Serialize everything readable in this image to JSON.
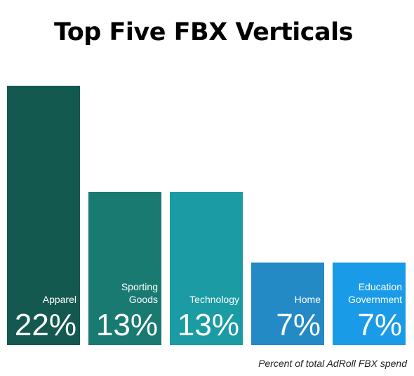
{
  "chart_data": {
    "type": "bar",
    "title": "Top Five FBX Verticals",
    "categories": [
      [
        "Apparel"
      ],
      [
        "Sporting",
        "Goods"
      ],
      [
        "Technology"
      ],
      [
        "Home"
      ],
      [
        "Education",
        "Government"
      ]
    ],
    "values": [
      22,
      13,
      13,
      7,
      7
    ],
    "value_labels": [
      "22%",
      "13%",
      "13%",
      "7%",
      "7%"
    ],
    "unit": "%",
    "colors": [
      "#14594f",
      "#197a72",
      "#1b9ba3",
      "#238ac6",
      "#1a9be8"
    ],
    "ylim": [
      0,
      22
    ],
    "xlabel": "",
    "ylabel": "",
    "grid": false,
    "legend": "none",
    "footnote": "Percent of total AdRoll FBX spend"
  }
}
